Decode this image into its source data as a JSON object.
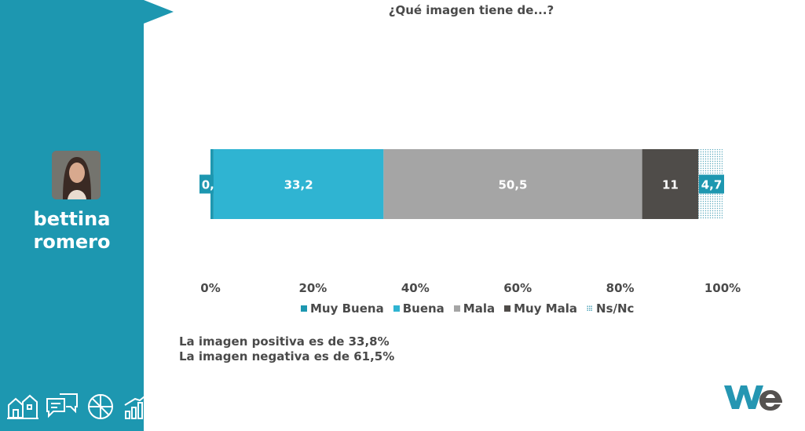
{
  "person": {
    "first_name": "bettina",
    "last_name": "romero"
  },
  "colors": {
    "sidebar": "#1d97b0",
    "muy_buena": "#1d97b0",
    "buena": "#2fb4d2",
    "mala": "#a5a5a5",
    "muy_mala": "#4f4c49",
    "ns_nc": "#5aa9bd",
    "logo_w": "#2596b2",
    "logo_e": "#555250"
  },
  "summary": {
    "positive": "La imagen positiva es de 33,8%",
    "negative": "La imagen negativa es de 61,5%"
  },
  "footer_icons": [
    "houses-icon",
    "chat-bubbles-icon",
    "pie-chart-icon",
    "growth-chart-icon"
  ],
  "logo": {
    "text": "We"
  },
  "chart_data": {
    "type": "bar",
    "orientation": "horizontal",
    "stacked": true,
    "title": "¿Qué imagen tiene de...?",
    "categories": [
      ""
    ],
    "xlim": [
      0,
      100
    ],
    "x_ticks": [
      "0%",
      "20%",
      "40%",
      "60%",
      "80%",
      "100%"
    ],
    "series": [
      {
        "name": "Muy Buena",
        "values": [
          0.6
        ],
        "label": "0,6",
        "color": "#1d97b0"
      },
      {
        "name": "Buena",
        "values": [
          33.2
        ],
        "label": "33,2",
        "color": "#2fb4d2"
      },
      {
        "name": "Mala",
        "values": [
          50.5
        ],
        "label": "50,5",
        "color": "#a5a5a5"
      },
      {
        "name": "Muy Mala",
        "values": [
          11
        ],
        "label": "11",
        "color": "#4f4c49"
      },
      {
        "name": "Ns/Nc",
        "values": [
          4.7
        ],
        "label": "4,7",
        "color": "#5aa9bd",
        "pattern": "dots"
      }
    ],
    "grid": false,
    "legend_position": "bottom"
  }
}
